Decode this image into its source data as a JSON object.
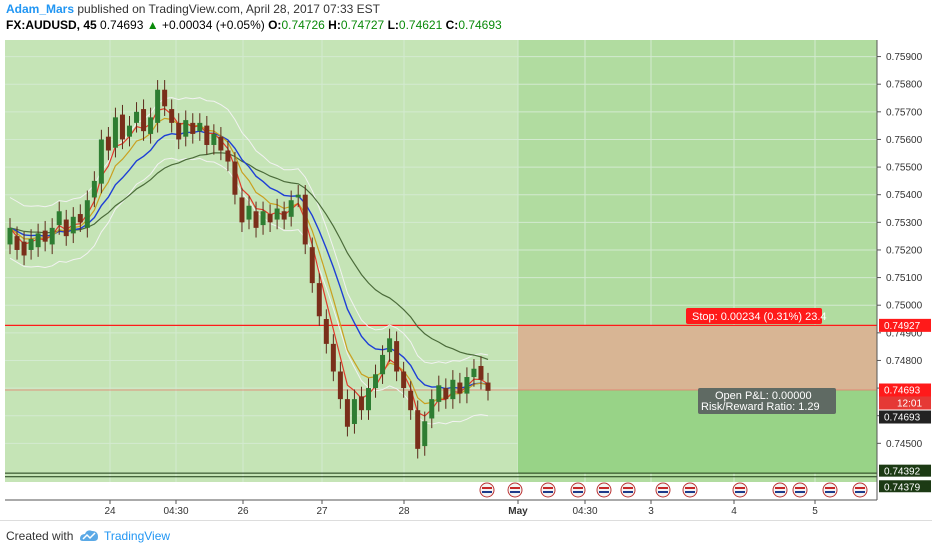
{
  "header": {
    "author": "Adam_Mars",
    "published_text": " published on TradingView.com, April 28, 2017 07:33 EST",
    "symbol": "FX:AUDUSD, 45",
    "last": "0.74693",
    "change": "+0.00034 (+0.05%)",
    "o_label": "O:",
    "o": "0.74726",
    "h_label": "H:",
    "h": "0.74727",
    "l_label": "L:",
    "l": "0.74621",
    "c_label": "C:",
    "c": "0.74693"
  },
  "footer": {
    "created": "Created with",
    "brand": "TradingView"
  },
  "colors": {
    "plot_bg": "#c5e4b6",
    "future_bg": "#b1dca0",
    "stop_zone": "#d8b594",
    "target_zone": "#98d387",
    "stop_line": "#ff1a1a",
    "ema_fast": "#e03a2a",
    "ema_mid": "#c9a020",
    "ema_blue": "#1e3fd6",
    "ema_slow": "#4b6b3a",
    "bollinger": "#f2f2f2"
  },
  "chart_data": {
    "type": "candlestick",
    "symbol": "FX:AUDUSD",
    "ylim": [
      0.7436,
      0.7596
    ],
    "y_ticks": [
      "0.75900",
      "0.75800",
      "0.75700",
      "0.75600",
      "0.75500",
      "0.75400",
      "0.75300",
      "0.75200",
      "0.75100",
      "0.75000",
      "0.74900",
      "0.74800",
      "0.74700",
      "0.74600",
      "0.74500"
    ],
    "x_ticks": [
      "24",
      "04:30",
      "26",
      "27",
      "28",
      "May",
      "04:30",
      "3",
      "4",
      "5"
    ],
    "price_labels": {
      "stop": "0.74927",
      "last": "0.74693",
      "countdown": "12:01",
      "current": "0.74693",
      "low1": "0.74392",
      "low2": "0.74379"
    },
    "position": {
      "stop_label": "Stop: 0.00234 (0.31%) 23.4",
      "pnl_label": "Open P&L: 0.00000",
      "rr_label": "Risk/Reward Ratio: 1.29",
      "entry": 0.74693,
      "stop": 0.74927,
      "target": 0.74392
    },
    "horizontal_lines": [
      0.74927,
      0.74392,
      0.74379
    ],
    "series_points": [
      [
        0.7522,
        0.7528
      ],
      [
        0.7525,
        0.752
      ],
      [
        0.7523,
        0.7518
      ],
      [
        0.752,
        0.7524
      ],
      [
        0.7521,
        0.7526
      ],
      [
        0.7527,
        0.7523
      ],
      [
        0.7522,
        0.7528
      ],
      [
        0.7529,
        0.7534
      ],
      [
        0.7531,
        0.7525
      ],
      [
        0.7526,
        0.7532
      ],
      [
        0.7533,
        0.753
      ],
      [
        0.7528,
        0.7538
      ],
      [
        0.7539,
        0.7545
      ],
      [
        0.7544,
        0.756
      ],
      [
        0.7561,
        0.7556
      ],
      [
        0.7557,
        0.7568
      ],
      [
        0.7569,
        0.756
      ],
      [
        0.7561,
        0.7565
      ],
      [
        0.7566,
        0.757
      ],
      [
        0.7571,
        0.7563
      ],
      [
        0.7562,
        0.7568
      ],
      [
        0.7566,
        0.7578
      ],
      [
        0.7578,
        0.7572
      ],
      [
        0.7571,
        0.7566
      ],
      [
        0.7566,
        0.756
      ],
      [
        0.7561,
        0.7567
      ],
      [
        0.7566,
        0.7562
      ],
      [
        0.7563,
        0.7566
      ],
      [
        0.7565,
        0.7558
      ],
      [
        0.7558,
        0.7562
      ],
      [
        0.7561,
        0.7556
      ],
      [
        0.7556,
        0.7552
      ],
      [
        0.7552,
        0.754
      ],
      [
        0.7539,
        0.753
      ],
      [
        0.7531,
        0.7536
      ],
      [
        0.7534,
        0.7528
      ],
      [
        0.7529,
        0.7534
      ],
      [
        0.7533,
        0.753
      ],
      [
        0.7531,
        0.7535
      ],
      [
        0.7534,
        0.7531
      ],
      [
        0.7532,
        0.7538
      ],
      [
        0.7539,
        0.754
      ],
      [
        0.754,
        0.7522
      ],
      [
        0.7521,
        0.7508
      ],
      [
        0.7508,
        0.7496
      ],
      [
        0.7495,
        0.7486
      ],
      [
        0.7486,
        0.7476
      ],
      [
        0.7476,
        0.7466
      ],
      [
        0.7466,
        0.7456
      ],
      [
        0.7457,
        0.7466
      ],
      [
        0.7467,
        0.7462
      ],
      [
        0.7462,
        0.747
      ],
      [
        0.747,
        0.7475
      ],
      [
        0.7475,
        0.7482
      ],
      [
        0.7483,
        0.7488
      ],
      [
        0.7487,
        0.7476
      ],
      [
        0.7476,
        0.747
      ],
      [
        0.7469,
        0.7462
      ],
      [
        0.7462,
        0.7448
      ],
      [
        0.7449,
        0.7458
      ],
      [
        0.7459,
        0.7466
      ],
      [
        0.7465,
        0.7471
      ],
      [
        0.747,
        0.7466
      ],
      [
        0.7466,
        0.7473
      ],
      [
        0.7472,
        0.7468
      ],
      [
        0.7468,
        0.7474
      ],
      [
        0.7474,
        0.7477
      ],
      [
        0.7478,
        0.7473
      ],
      [
        0.7472,
        0.7469
      ]
    ]
  }
}
